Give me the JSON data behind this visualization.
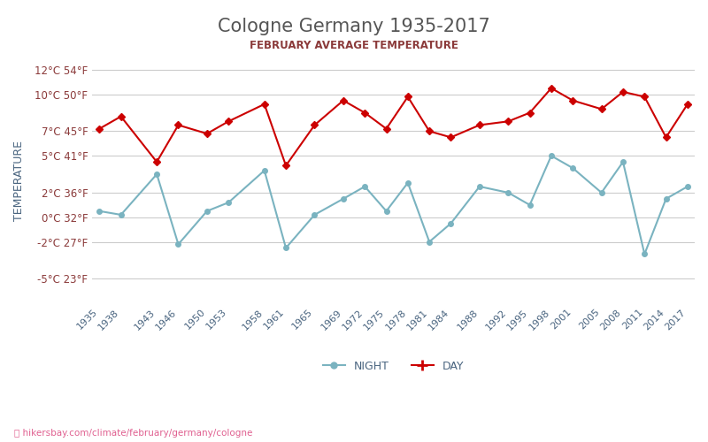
{
  "title": "Cologne Germany 1935-2017",
  "subtitle": "FEBRUARY AVERAGE TEMPERATURE",
  "ylabel": "TEMPERATURE",
  "watermark": "hikersbay.com/climate/february/germany/cologne",
  "years": [
    1935,
    1938,
    1943,
    1946,
    1950,
    1953,
    1958,
    1961,
    1965,
    1969,
    1972,
    1975,
    1978,
    1981,
    1984,
    1988,
    1992,
    1995,
    1998,
    2001,
    2005,
    2008,
    2011,
    2014,
    2017
  ],
  "day_temps": [
    7.2,
    8.2,
    4.5,
    7.5,
    6.8,
    7.8,
    9.2,
    4.2,
    7.5,
    9.5,
    8.5,
    7.2,
    9.8,
    7.0,
    6.5,
    7.5,
    7.8,
    8.5,
    10.5,
    9.5,
    8.8,
    10.2,
    9.8,
    6.5,
    9.2
  ],
  "night_temps": [
    0.5,
    0.2,
    3.5,
    -2.2,
    0.5,
    1.2,
    3.8,
    -2.5,
    0.2,
    1.5,
    2.5,
    0.5,
    2.8,
    -2.0,
    -0.5,
    2.5,
    2.0,
    1.0,
    5.0,
    4.0,
    2.0,
    4.5,
    -3.0,
    1.5,
    2.5
  ],
  "yticks_c": [
    12,
    10,
    7,
    5,
    2,
    0,
    -2,
    -5
  ],
  "yticks_f": [
    54,
    50,
    45,
    41,
    36,
    32,
    27,
    23
  ],
  "ylim": [
    -7,
    13
  ],
  "day_color": "#cc0000",
  "night_color": "#7ab3c0",
  "title_color": "#555555",
  "subtitle_color": "#8b3a3a",
  "tick_color": "#8b3a3a",
  "ylabel_color": "#4a6580",
  "watermark_color": "#e06090",
  "bg_color": "#ffffff",
  "grid_color": "#cccccc"
}
